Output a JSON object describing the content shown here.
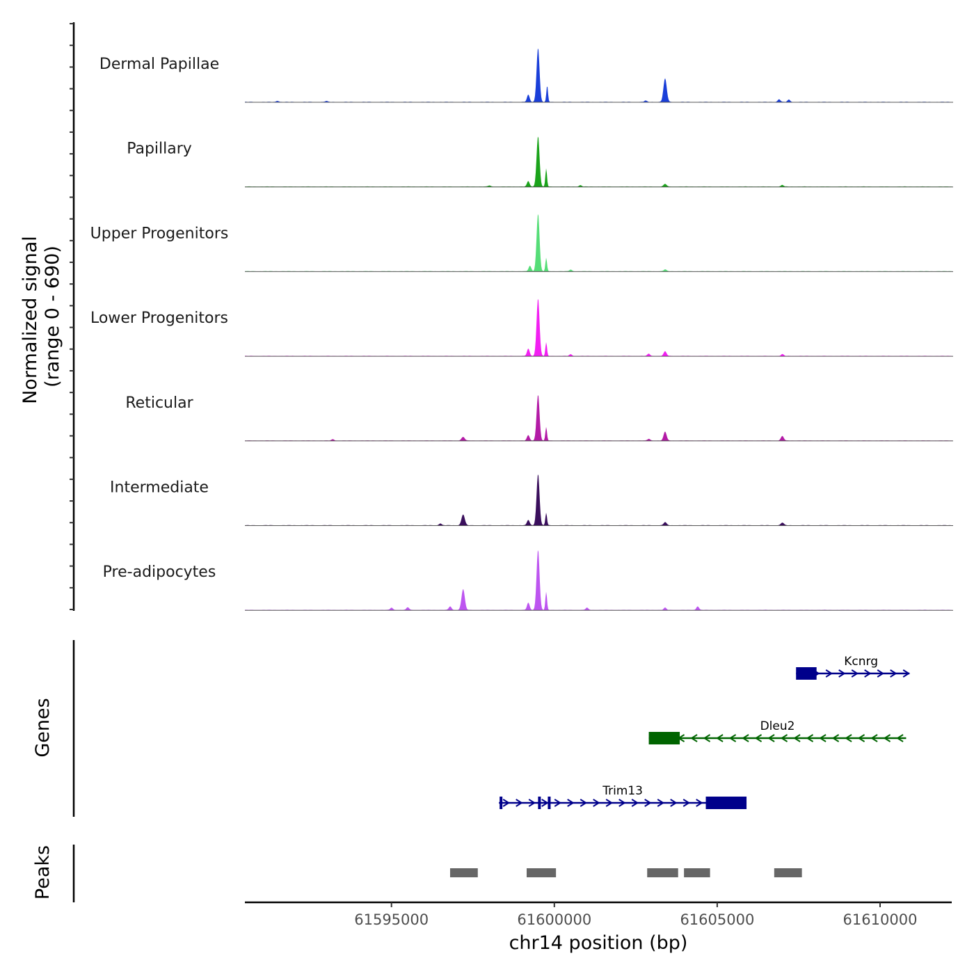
{
  "chart_data": {
    "type": "area",
    "title": "",
    "xlabel": "chr14 position (bp)",
    "ylabel_line1": "Normalized signal",
    "ylabel_line2": "(range 0 - 690)",
    "yrange": [
      0,
      690
    ],
    "xlim": [
      61590500,
      61612200
    ],
    "xticks": [
      61595000,
      61600000,
      61605000,
      61610000
    ],
    "xtick_labels": [
      "61595000",
      "61600000",
      "61605000",
      "61610000"
    ],
    "genes_label": "Genes",
    "peaks_label": "Peaks",
    "tracks": [
      {
        "name": "Dermal Papillae",
        "color": "#1a3fd9",
        "peaks": [
          [
            61599500,
            600,
            45
          ],
          [
            61599780,
            180,
            25
          ],
          [
            61599200,
            80,
            40
          ],
          [
            61603400,
            260,
            50
          ],
          [
            61606900,
            30,
            40
          ],
          [
            61607200,
            25,
            40
          ],
          [
            61591500,
            12,
            40
          ],
          [
            61593000,
            10,
            40
          ],
          [
            61602800,
            15,
            40
          ]
        ]
      },
      {
        "name": "Papillary",
        "color": "#1aa31a",
        "peaks": [
          [
            61599500,
            560,
            45
          ],
          [
            61599750,
            200,
            25
          ],
          [
            61599200,
            60,
            40
          ],
          [
            61603400,
            30,
            45
          ],
          [
            61607000,
            18,
            40
          ],
          [
            61598000,
            12,
            40
          ],
          [
            61600800,
            15,
            40
          ]
        ]
      },
      {
        "name": "Upper Progenitors",
        "color": "#55dd77",
        "peaks": [
          [
            61599500,
            640,
            45
          ],
          [
            61599750,
            150,
            25
          ],
          [
            61599250,
            60,
            40
          ],
          [
            61603400,
            20,
            45
          ],
          [
            61600500,
            18,
            40
          ]
        ]
      },
      {
        "name": "Lower Progenitors",
        "color": "#f21ff2",
        "peaks": [
          [
            61599500,
            640,
            45
          ],
          [
            61599750,
            150,
            25
          ],
          [
            61599200,
            80,
            40
          ],
          [
            61603400,
            50,
            45
          ],
          [
            61602900,
            25,
            40
          ],
          [
            61607000,
            20,
            40
          ],
          [
            61600500,
            18,
            40
          ]
        ]
      },
      {
        "name": "Reticular",
        "color": "#b31ba6",
        "peaks": [
          [
            61599500,
            510,
            45
          ],
          [
            61599750,
            150,
            25
          ],
          [
            61599200,
            60,
            40
          ],
          [
            61603400,
            100,
            45
          ],
          [
            61597200,
            40,
            50
          ],
          [
            61607000,
            50,
            45
          ],
          [
            61593200,
            15,
            40
          ],
          [
            61602900,
            20,
            40
          ]
        ]
      },
      {
        "name": "Intermediate",
        "color": "#3a0f5c",
        "peaks": [
          [
            61599500,
            570,
            45
          ],
          [
            61599750,
            140,
            25
          ],
          [
            61599200,
            60,
            40
          ],
          [
            61597200,
            120,
            50
          ],
          [
            61603400,
            35,
            45
          ],
          [
            61607000,
            30,
            45
          ],
          [
            61596500,
            20,
            40
          ]
        ]
      },
      {
        "name": "Pre-adipocytes",
        "color": "#bd55f0",
        "peaks": [
          [
            61599500,
            670,
            45
          ],
          [
            61599750,
            200,
            25
          ],
          [
            61599200,
            80,
            40
          ],
          [
            61597200,
            230,
            50
          ],
          [
            61596800,
            40,
            40
          ],
          [
            61604400,
            40,
            40
          ],
          [
            61603400,
            25,
            40
          ],
          [
            61595500,
            30,
            40
          ],
          [
            61595000,
            25,
            40
          ],
          [
            61601000,
            25,
            40
          ]
        ]
      }
    ],
    "genes": [
      {
        "name": "Kcnrg",
        "color": "#00008b",
        "strand": "+",
        "start": 61607420,
        "end": 61610900,
        "exons": [
          [
            61607420,
            61607450
          ],
          [
            61607480,
            61608050
          ]
        ]
      },
      {
        "name": "Dleu2",
        "color": "#006400",
        "strand": "-",
        "start": 61602900,
        "end": 61610800,
        "exons": [
          [
            61602900,
            61603850
          ]
        ]
      },
      {
        "name": "Trim13",
        "color": "#00008b",
        "strand": "+",
        "start": 61598300,
        "end": 61605900,
        "exons": [
          [
            61598320,
            61598400
          ],
          [
            61599500,
            61599550
          ],
          [
            61599800,
            61599880
          ],
          [
            61604650,
            61605900
          ]
        ]
      }
    ],
    "peak_regions": [
      [
        61596800,
        61597650
      ],
      [
        61599150,
        61600050
      ],
      [
        61602850,
        61603800
      ],
      [
        61603980,
        61604780
      ],
      [
        61606750,
        61607600
      ]
    ]
  }
}
